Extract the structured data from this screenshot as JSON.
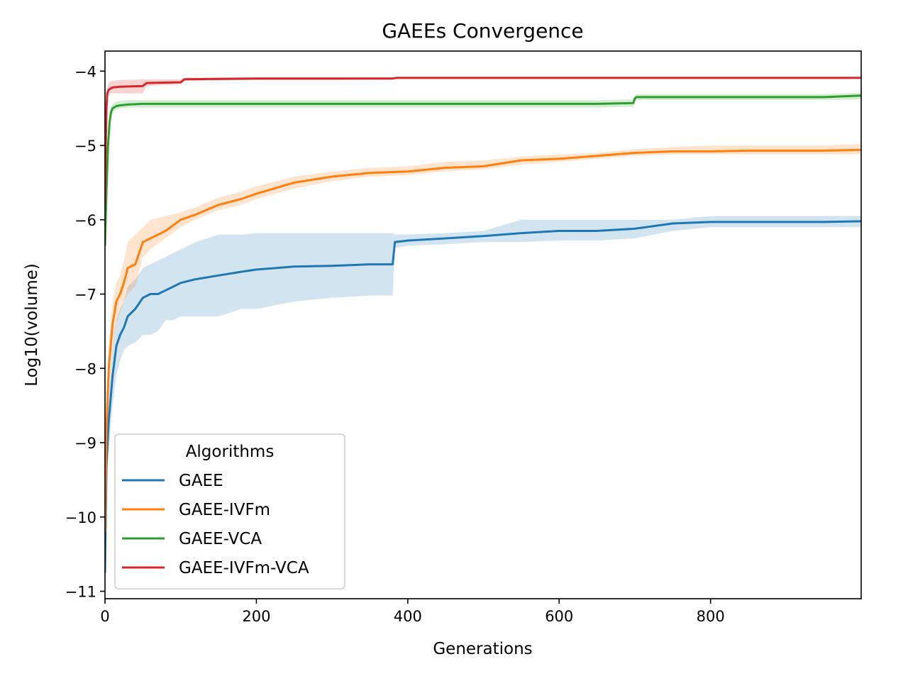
{
  "chart_data": {
    "type": "line",
    "title": "GAEEs Convergence",
    "xlabel": "Generations",
    "ylabel": "Log10(volume)",
    "xlim": [
      0,
      999
    ],
    "ylim": [
      -11.1,
      -3.73
    ],
    "x_ticks": [
      0,
      200,
      400,
      600,
      800
    ],
    "x_tick_labels": [
      "0",
      "200",
      "400",
      "600",
      "800"
    ],
    "y_ticks": [
      -4,
      -5,
      -6,
      -7,
      -8,
      -9,
      -10,
      -11
    ],
    "y_tick_labels": [
      "−4",
      "−5",
      "−6",
      "−7",
      "−8",
      "−9",
      "−10",
      "−11"
    ],
    "grid": false,
    "legend": {
      "title": "Algorithms",
      "placement": "lower-left"
    },
    "series": [
      {
        "name": "GAEE",
        "color": "#1f77b4",
        "x": [
          0,
          2,
          5,
          10,
          15,
          20,
          25,
          30,
          40,
          50,
          60,
          70,
          80,
          90,
          100,
          120,
          150,
          180,
          200,
          250,
          300,
          350,
          380,
          383,
          400,
          450,
          500,
          550,
          600,
          650,
          700,
          750,
          800,
          850,
          900,
          950,
          999
        ],
        "y": [
          -10.75,
          -9.3,
          -8.7,
          -8.1,
          -7.7,
          -7.55,
          -7.45,
          -7.3,
          -7.2,
          -7.05,
          -7.0,
          -7.0,
          -6.95,
          -6.9,
          -6.85,
          -6.8,
          -6.75,
          -6.7,
          -6.67,
          -6.63,
          -6.62,
          -6.6,
          -6.6,
          -6.3,
          -6.28,
          -6.25,
          -6.22,
          -6.18,
          -6.15,
          -6.15,
          -6.12,
          -6.05,
          -6.03,
          -6.03,
          -6.03,
          -6.03,
          -6.02
        ],
        "band_lower": [
          -10.75,
          -9.6,
          -9.1,
          -8.5,
          -8.1,
          -7.9,
          -7.75,
          -7.7,
          -7.65,
          -7.55,
          -7.55,
          -7.5,
          -7.35,
          -7.35,
          -7.3,
          -7.3,
          -7.3,
          -7.2,
          -7.2,
          -7.1,
          -7.05,
          -7.02,
          -7.02,
          -6.38,
          -6.35,
          -6.33,
          -6.3,
          -6.3,
          -6.28,
          -6.28,
          -6.25,
          -6.15,
          -6.1,
          -6.1,
          -6.1,
          -6.1,
          -6.1
        ],
        "band_upper": [
          -10.75,
          -9.0,
          -8.3,
          -7.7,
          -7.35,
          -7.2,
          -7.1,
          -6.9,
          -6.8,
          -6.65,
          -6.6,
          -6.55,
          -6.5,
          -6.45,
          -6.4,
          -6.3,
          -6.2,
          -6.2,
          -6.18,
          -6.18,
          -6.18,
          -6.18,
          -6.18,
          -6.2,
          -6.2,
          -6.18,
          -6.15,
          -6.0,
          -6.0,
          -6.0,
          -6.0,
          -6.0,
          -5.95,
          -5.95,
          -5.95,
          -5.95,
          -5.95
        ]
      },
      {
        "name": "GAEE-IVFm",
        "color": "#ff7f0e",
        "x": [
          0,
          2,
          5,
          10,
          15,
          20,
          25,
          30,
          40,
          50,
          60,
          80,
          100,
          120,
          150,
          180,
          200,
          250,
          300,
          350,
          400,
          450,
          500,
          550,
          600,
          650,
          700,
          750,
          800,
          850,
          900,
          950,
          999
        ],
        "y": [
          -10.2,
          -8.8,
          -8.0,
          -7.4,
          -7.1,
          -7.0,
          -6.85,
          -6.65,
          -6.6,
          -6.3,
          -6.25,
          -6.15,
          -6.0,
          -5.93,
          -5.8,
          -5.72,
          -5.65,
          -5.5,
          -5.42,
          -5.37,
          -5.35,
          -5.3,
          -5.28,
          -5.2,
          -5.18,
          -5.14,
          -5.1,
          -5.08,
          -5.08,
          -5.07,
          -5.07,
          -5.07,
          -5.06
        ],
        "band_lower": [
          -10.2,
          -9.1,
          -8.3,
          -7.7,
          -7.4,
          -7.25,
          -7.1,
          -7.0,
          -6.9,
          -6.5,
          -6.4,
          -6.25,
          -6.1,
          -6.0,
          -5.87,
          -5.8,
          -5.72,
          -5.58,
          -5.48,
          -5.42,
          -5.4,
          -5.35,
          -5.32,
          -5.26,
          -5.22,
          -5.18,
          -5.14,
          -5.12,
          -5.12,
          -5.12,
          -5.12,
          -5.12,
          -5.12
        ],
        "band_upper": [
          -10.2,
          -8.5,
          -7.7,
          -7.1,
          -6.85,
          -6.75,
          -6.55,
          -6.3,
          -6.2,
          -6.1,
          -6.0,
          -5.95,
          -5.9,
          -5.83,
          -5.7,
          -5.62,
          -5.55,
          -5.42,
          -5.35,
          -5.3,
          -5.28,
          -5.22,
          -5.2,
          -5.15,
          -5.12,
          -5.1,
          -5.05,
          -5.02,
          -5.0,
          -5.0,
          -5.0,
          -5.0,
          -4.98
        ]
      },
      {
        "name": "GAEE-VCA",
        "color": "#2ca02c",
        "x": [
          0,
          2,
          4,
          6,
          8,
          10,
          15,
          20,
          30,
          50,
          100,
          200,
          300,
          400,
          500,
          600,
          650,
          698,
          700,
          702,
          750,
          800,
          850,
          900,
          950,
          999
        ],
        "y": [
          -6.35,
          -5.6,
          -5.0,
          -4.7,
          -4.55,
          -4.5,
          -4.47,
          -4.46,
          -4.45,
          -4.44,
          -4.44,
          -4.44,
          -4.44,
          -4.44,
          -4.44,
          -4.44,
          -4.44,
          -4.43,
          -4.37,
          -4.35,
          -4.35,
          -4.35,
          -4.35,
          -4.35,
          -4.35,
          -4.33
        ],
        "band_lower": [
          -6.35,
          -5.7,
          -5.1,
          -4.8,
          -4.62,
          -4.56,
          -4.52,
          -4.5,
          -4.49,
          -4.49,
          -4.49,
          -4.49,
          -4.49,
          -4.49,
          -4.49,
          -4.49,
          -4.49,
          -4.48,
          -4.41,
          -4.39,
          -4.39,
          -4.39,
          -4.39,
          -4.39,
          -4.39,
          -4.38
        ],
        "band_upper": [
          -6.35,
          -5.5,
          -4.9,
          -4.6,
          -4.48,
          -4.44,
          -4.41,
          -4.4,
          -4.39,
          -4.39,
          -4.39,
          -4.39,
          -4.39,
          -4.39,
          -4.39,
          -4.39,
          -4.39,
          -4.38,
          -4.33,
          -4.31,
          -4.31,
          -4.31,
          -4.31,
          -4.31,
          -4.31,
          -4.29
        ]
      },
      {
        "name": "GAEE-IVFm-VCA",
        "color": "#d62728",
        "x": [
          0,
          1,
          2,
          3,
          5,
          8,
          10,
          20,
          50,
          55,
          100,
          105,
          200,
          300,
          380,
          385,
          500,
          600,
          700,
          800,
          900,
          999
        ],
        "y": [
          -5.8,
          -5.0,
          -4.5,
          -4.3,
          -4.25,
          -4.23,
          -4.22,
          -4.21,
          -4.2,
          -4.16,
          -4.15,
          -4.11,
          -4.1,
          -4.1,
          -4.1,
          -4.09,
          -4.09,
          -4.09,
          -4.09,
          -4.09,
          -4.09,
          -4.09
        ],
        "band_lower": [
          -5.8,
          -5.1,
          -4.6,
          -4.38,
          -4.32,
          -4.3,
          -4.3,
          -4.3,
          -4.3,
          -4.2,
          -4.18,
          -4.13,
          -4.12,
          -4.12,
          -4.11,
          -4.1,
          -4.1,
          -4.1,
          -4.1,
          -4.1,
          -4.1,
          -4.1
        ],
        "band_upper": [
          -5.8,
          -4.9,
          -4.4,
          -4.2,
          -4.16,
          -4.14,
          -4.13,
          -4.12,
          -4.11,
          -4.11,
          -4.11,
          -4.09,
          -4.08,
          -4.08,
          -4.08,
          -4.08,
          -4.08,
          -4.08,
          -4.08,
          -4.08,
          -4.08,
          -4.08
        ]
      }
    ]
  }
}
